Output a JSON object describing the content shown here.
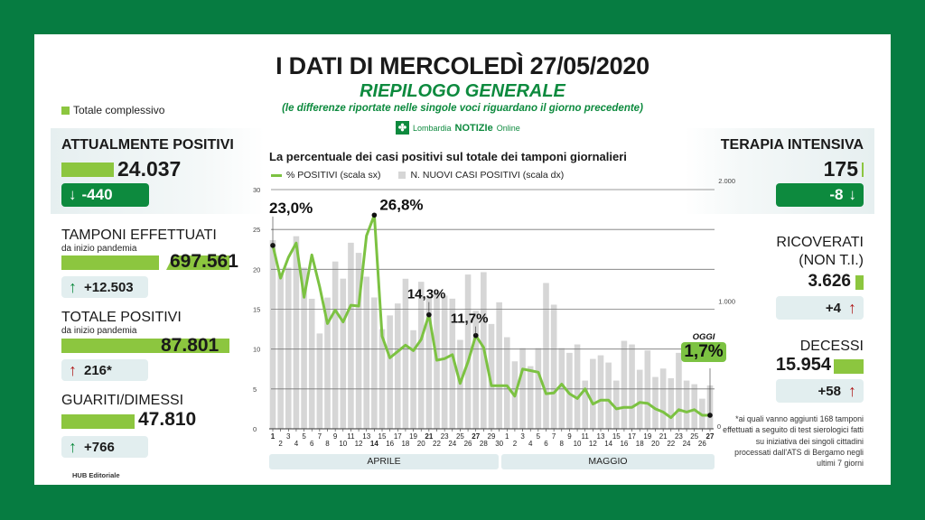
{
  "header": {
    "title": "I DATI DI MERCOLEDÌ 27/05/2020",
    "subtitle": "RIEPILOGO GENERALE",
    "note": "(le differenze riportate nelle singole voci riguardano il giorno precedente)",
    "brand_prefix": "Lombardia",
    "brand_name": "NOTIZIe",
    "brand_suffix": "Online",
    "legend_total": "Totale complessivo"
  },
  "colors": {
    "frame_green": "#067c41",
    "accent_green": "#0d8a3e",
    "bar_green": "#8cc63f",
    "line_green": "#7cc242",
    "bar_gray": "#d6d6d6",
    "up_red": "#b01e1e",
    "light_box": "#e2eeef"
  },
  "left": {
    "attualmente_positivi": {
      "label": "ATTUALMENTE POSITIVI",
      "value": "24.037",
      "delta": "-440",
      "direction": "down"
    },
    "tamponi": {
      "label": "TAMPONI EFFETTUATI",
      "sublabel": "da inizio pandemia",
      "value": "697.561",
      "delta": "+12.503",
      "direction": "up"
    },
    "totale_positivi": {
      "label": "TOTALE POSITIVI",
      "sublabel": "da inizio pandemia",
      "value": "87.801",
      "delta": "216*",
      "direction": "up"
    },
    "guariti": {
      "label": "GUARITI/DIMESSI",
      "value": "47.810",
      "delta": "+766",
      "direction": "up"
    }
  },
  "right": {
    "terapia_intensiva": {
      "label": "TERAPIA INTENSIVA",
      "value": "175",
      "delta": "-8",
      "direction": "down"
    },
    "ricoverati": {
      "label_line1": "RICOVERATI",
      "label_line2": "(NON T.I.)",
      "value": "3.626",
      "delta": "+4",
      "direction": "up"
    },
    "decessi": {
      "label": "DECESSI",
      "value": "15.954",
      "delta": "+58",
      "direction": "up"
    },
    "footnote": "*ai quali vanno aggiunti 168 tamponi effettuati a seguito di test sierologici fatti su iniziativa dei singoli cittadini processati dall'ATS di Bergamo negli ultimi 7 giorni"
  },
  "footer": {
    "credit": "HUB Editoriale"
  },
  "chart_data": {
    "type": "bar+line",
    "title": "La percentuale dei casi positivi sul totale dei tamponi giornalieri",
    "legend": [
      "% POSITIVI (scala sx)",
      "N. NUOVI CASI POSITIVI (scala dx)"
    ],
    "xlabel": "",
    "ylabel_left": "% positivi",
    "ylabel_right": "nuovi casi positivi",
    "ylim_left": [
      0,
      30
    ],
    "yticks_left": [
      "0",
      "5",
      "10",
      "15",
      "20",
      "25",
      "30"
    ],
    "ylim_right": [
      0,
      2000
    ],
    "yticks_right": [
      "0",
      "1.000",
      "2.000"
    ],
    "grid": true,
    "months": [
      "APRILE",
      "MAGGIO"
    ],
    "categories": [
      "1",
      "2",
      "3",
      "4",
      "5",
      "6",
      "7",
      "8",
      "9",
      "10",
      "11",
      "12",
      "13",
      "14",
      "15",
      "16",
      "17",
      "18",
      "19",
      "20",
      "21",
      "22",
      "23",
      "24",
      "25",
      "26",
      "27",
      "28",
      "29",
      "30",
      "1",
      "2",
      "3",
      "4",
      "5",
      "6",
      "7",
      "8",
      "9",
      "10",
      "11",
      "12",
      "13",
      "14",
      "15",
      "16",
      "17",
      "18",
      "19",
      "20",
      "21",
      "22",
      "23",
      "24",
      "25",
      "26",
      "27"
    ],
    "series": [
      {
        "name": "% POSITIVI (scala sx)",
        "axis": "left",
        "type": "line",
        "values": [
          23.0,
          18.9,
          21.5,
          23.3,
          16.5,
          21.8,
          17.8,
          13.2,
          14.9,
          13.4,
          15.5,
          15.4,
          24.2,
          26.8,
          11.6,
          8.9,
          9.7,
          10.5,
          9.8,
          11.2,
          14.3,
          8.6,
          8.8,
          9.3,
          5.7,
          8.4,
          11.7,
          10.2,
          5.4,
          5.4,
          5.4,
          4.1,
          7.5,
          7.3,
          7.1,
          4.4,
          4.5,
          5.6,
          4.4,
          3.8,
          5.0,
          3.1,
          3.6,
          3.6,
          2.5,
          2.7,
          2.7,
          3.3,
          3.2,
          2.5,
          2.1,
          1.4,
          2.4,
          2.1,
          2.4,
          1.7,
          1.7
        ]
      },
      {
        "name": "N. NUOVI CASI POSITIVI (scala dx)",
        "axis": "right",
        "type": "bar",
        "values": [
          1565,
          1292,
          1337,
          1598,
          1337,
          1079,
          791,
          1089,
          1388,
          1246,
          1544,
          1460,
          1262,
          1090,
          827,
          941,
          1040,
          1245,
          818,
          1220,
          1091,
          1146,
          1106,
          1080,
          738,
          1280,
          980,
          1300,
          870,
          1050,
          760,
          560,
          670,
          520,
          670,
          1210,
          1030,
          670,
          630,
          700,
          400,
          580,
          610,
          550,
          400,
          730,
          700,
          490,
          650,
          430,
          500,
          420,
          630,
          400,
          370,
          250,
          360
        ]
      }
    ],
    "annotations": [
      {
        "x": "1 Apr",
        "text": "23,0%"
      },
      {
        "x": "14 Apr",
        "text": "26,8%"
      },
      {
        "x": "21 Apr",
        "text": "14,3%"
      },
      {
        "x": "27 Apr",
        "text": "11,7%"
      },
      {
        "x": "27 May",
        "label": "OGGI",
        "text": "1,7%"
      }
    ],
    "bold_ticks": [
      "1",
      "14",
      "21",
      "27",
      "27"
    ]
  }
}
